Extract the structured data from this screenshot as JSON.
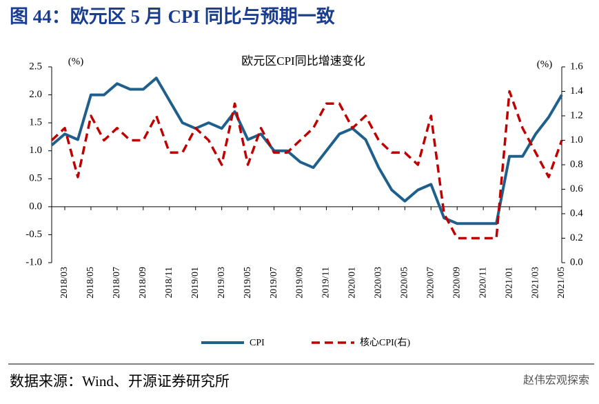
{
  "header": {
    "title": "图 44：欧元区 5 月 CPI 同比与预期一致"
  },
  "footer": {
    "source": "数据来源：Wind、开源证券研究所",
    "watermark": "赵伟宏观探索"
  },
  "chart_data": {
    "type": "line",
    "title": "欧元区CPI同比增速变化",
    "ylabel": "(%)",
    "y2label": "(%)",
    "categories": [
      null,
      "2018/03",
      null,
      "2018/05",
      null,
      "2018/07",
      null,
      "2018/09",
      null,
      "2018/11",
      null,
      "2019/01",
      null,
      "2019/03",
      null,
      "2019/05",
      null,
      "2019/07",
      null,
      "2019/09",
      null,
      "2019/11",
      null,
      "2020/01",
      null,
      "2020/03",
      null,
      "2020/05",
      null,
      "2020/07",
      null,
      "2020/09",
      null,
      "2020/11",
      null,
      "2021/01",
      null,
      "2021/03",
      null,
      "2021/05"
    ],
    "series": [
      {
        "name": "CPI",
        "color": "#1f5f8b",
        "dash": false,
        "values": [
          1.1,
          1.3,
          1.2,
          2.0,
          2.0,
          2.2,
          2.1,
          2.1,
          2.3,
          1.9,
          1.5,
          1.4,
          1.5,
          1.4,
          1.7,
          1.2,
          1.3,
          1.0,
          1.0,
          0.8,
          0.7,
          1.0,
          1.3,
          1.4,
          1.2,
          0.7,
          0.3,
          0.1,
          0.3,
          0.4,
          -0.2,
          -0.3,
          -0.3,
          -0.3,
          -0.3,
          0.9,
          0.9,
          1.3,
          1.6,
          2.0
        ]
      },
      {
        "name": "核心CPI(右)",
        "color": "#c00000",
        "dash": true,
        "axis": "y2",
        "values": [
          1.0,
          1.1,
          0.7,
          1.2,
          1.0,
          1.1,
          1.0,
          1.0,
          1.2,
          0.9,
          0.9,
          1.1,
          1.0,
          0.8,
          1.3,
          0.8,
          1.1,
          0.9,
          0.9,
          1.0,
          1.1,
          1.3,
          1.3,
          1.1,
          1.2,
          1.0,
          0.9,
          0.9,
          0.8,
          1.2,
          0.4,
          0.2,
          0.2,
          0.2,
          0.2,
          1.4,
          1.1,
          0.9,
          0.7,
          1.0
        ]
      }
    ],
    "ylim": [
      -1.0,
      2.5
    ],
    "yticks": [
      {
        "value": -1.0,
        "label": "-1.0"
      },
      -0.5,
      {
        "value": 0,
        "label": "0.0"
      },
      0.5,
      {
        "value": 1.0,
        "label": "1.0"
      },
      1.5,
      {
        "value": 2.0,
        "label": "2.0"
      },
      2.5
    ],
    "y2lim": [
      0,
      1.6
    ],
    "y2ticks": [
      {
        "value": 0,
        "label": "0.0"
      },
      0.2,
      0.4,
      0.6,
      0.8,
      {
        "value": 1.0,
        "label": "1.0"
      },
      1.2,
      1.4,
      1.6
    ],
    "grid": false,
    "legend": "bottom"
  }
}
